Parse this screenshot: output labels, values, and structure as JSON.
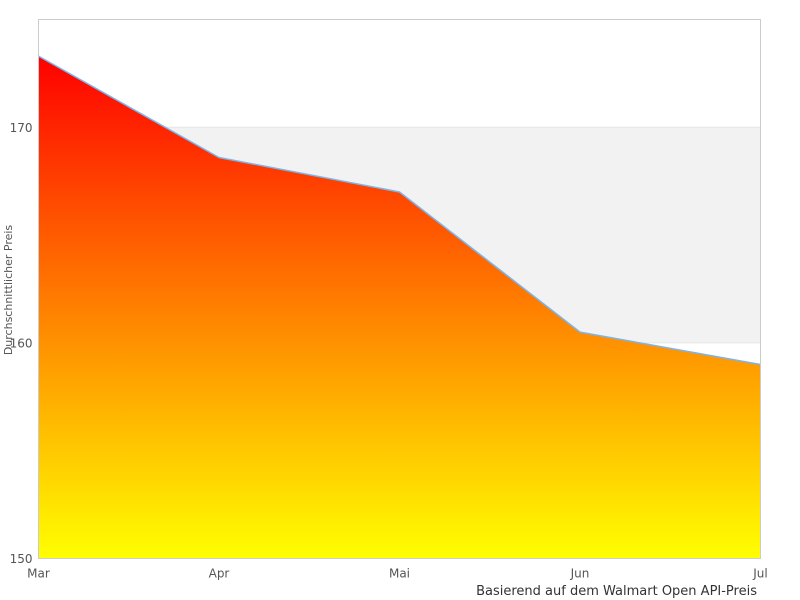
{
  "chart_data": {
    "type": "area",
    "categories": [
      "Mar",
      "Apr",
      "Mai",
      "Jun",
      "Jul"
    ],
    "values": [
      173.3,
      168.6,
      167.0,
      160.5,
      159.0
    ],
    "series_name": "Durchschnittlicher Preis",
    "title": "",
    "xlabel": "",
    "ylabel": "Durchschnittlicher Preis",
    "caption": "Basierend auf dem Walmart Open API-Preis",
    "ylim": [
      150,
      175
    ],
    "yticks": [
      150,
      160,
      170
    ],
    "grid": true,
    "legend": "none",
    "plot_bands": [
      {
        "from": 160,
        "to": 170,
        "color": "#f2f2f2"
      }
    ],
    "colors": {
      "area_gradient_top": "#ff0000",
      "area_gradient_bottom": "#ffff00",
      "line": "#7cb5ec",
      "grid_line": "#e6e6e6",
      "plot_border": "#cccccc",
      "tick_text": "#555555",
      "caption_text": "#333333",
      "background": "#ffffff"
    }
  }
}
